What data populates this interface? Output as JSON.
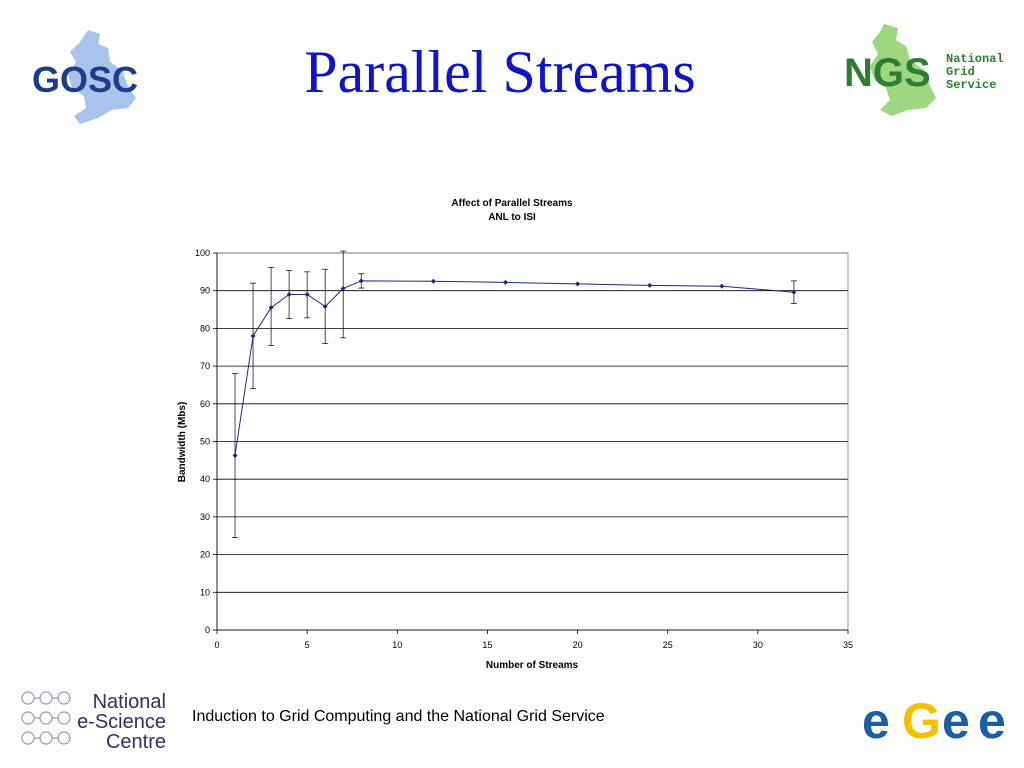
{
  "slide": {
    "title": "Parallel Streams",
    "footer": "Induction to Grid Computing and the National Grid Service"
  },
  "logos": {
    "gosc": {
      "text": "GOSC",
      "color": "#1f3c8c",
      "map_color": "#a9c4ec"
    },
    "ngs": {
      "text": "NGS",
      "sub": [
        "National",
        "Grid",
        "Service"
      ],
      "color": "#2e7d32",
      "map_color": "#9ed77f"
    },
    "nesc": {
      "lines": [
        "National",
        "e-Science",
        "Centre"
      ],
      "color": "#3a2b6a"
    },
    "egee": {
      "letters": [
        "e",
        "G",
        "e",
        "e"
      ],
      "colors": [
        "#1a5ea8",
        "#f2c200",
        "#1a5ea8",
        "#1a5ea8"
      ]
    }
  },
  "chart_data": {
    "type": "line",
    "title": "Affect of Parallel Streams",
    "subtitle": "ANL to ISI",
    "xlabel": "Number of Streams",
    "ylabel": "Bandwidth (Mbs)",
    "xlim": [
      0,
      35
    ],
    "ylim": [
      0,
      100
    ],
    "xticks": [
      0,
      5,
      10,
      15,
      20,
      25,
      30,
      35
    ],
    "yticks": [
      0,
      10,
      20,
      30,
      40,
      50,
      60,
      70,
      80,
      90,
      100
    ],
    "grid": "horizontal",
    "line_color": "#1f2a7a",
    "series": [
      {
        "x": [
          1,
          2,
          3,
          4,
          5,
          6,
          7,
          8,
          12,
          16,
          20,
          24,
          28,
          32
        ],
        "y": [
          46.3,
          78,
          85.5,
          89,
          89,
          85.8,
          90.6,
          92.6,
          92.5,
          92.2,
          91.8,
          91.4,
          91.2,
          89.6
        ],
        "err_low": [
          24.5,
          64,
          75.5,
          82.6,
          82.8,
          76,
          77.5,
          90.7,
          null,
          null,
          null,
          null,
          null,
          86.6
        ],
        "err_high": [
          68,
          92,
          96.2,
          95.4,
          95,
          95.7,
          100.5,
          94.5,
          null,
          null,
          null,
          null,
          null,
          92.6
        ]
      }
    ]
  }
}
